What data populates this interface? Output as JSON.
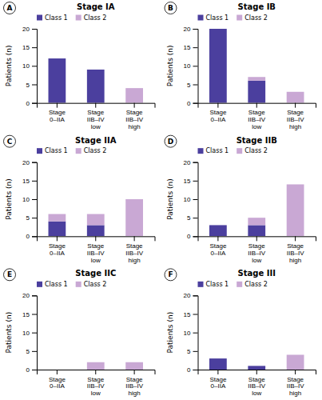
{
  "chart_data": [
    {
      "type": "bar",
      "title": "Stage IA",
      "annotations": [
        "A"
      ],
      "stacked": true,
      "legend": "top",
      "grid": false,
      "categories": [
        "Stage\n0–IIA",
        "Stage\nIIB–IV\nlow",
        "Stage\nIIB–IV\nhigh"
      ],
      "series": [
        {
          "name": "Class 1",
          "color": "#4B3F9E",
          "values": [
            12,
            9,
            0
          ]
        },
        {
          "name": "Class 2",
          "color": "#C9A8D4",
          "values": [
            0,
            0,
            4
          ]
        }
      ],
      "ylabel": "Patients (n)",
      "ylim": [
        0,
        20
      ],
      "yticks": [
        0,
        5,
        10,
        15,
        20
      ]
    },
    {
      "type": "bar",
      "title": "Stage IB",
      "annotations": [
        "B"
      ],
      "stacked": true,
      "legend": "top",
      "grid": false,
      "categories": [
        "Stage\n0–IIA",
        "Stage\nIIB–IV\nlow",
        "Stage\nIIB–IV\nhigh"
      ],
      "series": [
        {
          "name": "Class 1",
          "color": "#4B3F9E",
          "values": [
            20,
            6,
            0
          ]
        },
        {
          "name": "Class 2",
          "color": "#C9A8D4",
          "values": [
            0,
            1,
            3
          ]
        }
      ],
      "ylabel": "Patients (n)",
      "ylim": [
        0,
        20
      ],
      "yticks": [
        0,
        5,
        10,
        15,
        20
      ]
    },
    {
      "type": "bar",
      "title": "Stage IIA",
      "annotations": [
        "C"
      ],
      "stacked": true,
      "legend": "top",
      "grid": false,
      "categories": [
        "Stage\n0–IIA",
        "Stage\nIIB–IV\nlow",
        "Stage\nIIB–IV\nhigh"
      ],
      "series": [
        {
          "name": "Class 1",
          "color": "#4B3F9E",
          "values": [
            4,
            3,
            0
          ]
        },
        {
          "name": "Class 2",
          "color": "#C9A8D4",
          "values": [
            2,
            3,
            10
          ]
        }
      ],
      "ylabel": "Patients (n)",
      "ylim": [
        0,
        20
      ],
      "yticks": [
        0,
        5,
        10,
        15,
        20
      ]
    },
    {
      "type": "bar",
      "title": "Stage IIB",
      "annotations": [
        "D"
      ],
      "stacked": true,
      "legend": "top",
      "grid": false,
      "categories": [
        "Stage\n0–IIA",
        "Stage\nIIB–IV\nlow",
        "Stage\nIIB–IV\nhigh"
      ],
      "series": [
        {
          "name": "Class 1",
          "color": "#4B3F9E",
          "values": [
            3,
            3,
            0
          ]
        },
        {
          "name": "Class 2",
          "color": "#C9A8D4",
          "values": [
            0,
            2,
            14
          ]
        }
      ],
      "ylabel": "Patients (n)",
      "ylim": [
        0,
        20
      ],
      "yticks": [
        0,
        5,
        10,
        15,
        20
      ]
    },
    {
      "type": "bar",
      "title": "Stage IIC",
      "annotations": [
        "E"
      ],
      "stacked": true,
      "legend": "top",
      "grid": false,
      "categories": [
        "Stage\n0–IIA",
        "Stage\nIIB–IV\nlow",
        "Stage\nIIB–IV\nhigh"
      ],
      "series": [
        {
          "name": "Class 1",
          "color": "#4B3F9E",
          "values": [
            0,
            0,
            0
          ]
        },
        {
          "name": "Class 2",
          "color": "#C9A8D4",
          "values": [
            0,
            2,
            2
          ]
        }
      ],
      "ylabel": "Patients (n)",
      "ylim": [
        0,
        20
      ],
      "yticks": [
        0,
        5,
        10,
        15,
        20
      ]
    },
    {
      "type": "bar",
      "title": "Stage III",
      "annotations": [
        "F"
      ],
      "stacked": true,
      "legend": "top",
      "grid": false,
      "categories": [
        "Stage\n0–IIA",
        "Stage\nIIB–IV\nlow",
        "Stage\nIIB–IV\nhigh"
      ],
      "series": [
        {
          "name": "Class 1",
          "color": "#4B3F9E",
          "values": [
            3,
            1,
            0
          ]
        },
        {
          "name": "Class 2",
          "color": "#C9A8D4",
          "values": [
            0,
            0,
            4
          ]
        }
      ],
      "ylabel": "Patients (n)",
      "ylim": [
        0,
        20
      ],
      "yticks": [
        0,
        5,
        10,
        15,
        20
      ]
    }
  ]
}
